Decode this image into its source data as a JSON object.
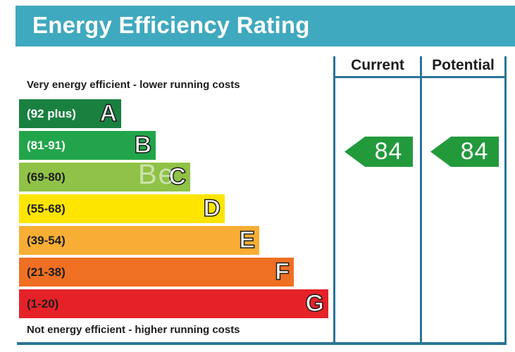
{
  "title": "Energy Efficiency Rating",
  "columns": {
    "current": "Current",
    "potential": "Potential"
  },
  "top_caption": "Very energy efficient - lower running costs",
  "bottom_caption": "Not energy efficient - higher running costs",
  "watermark": "Be",
  "chart_data": {
    "type": "bar",
    "title": "Energy Efficiency Rating",
    "categories": [
      "A",
      "B",
      "C",
      "D",
      "E",
      "F",
      "G"
    ],
    "bands": [
      {
        "letter": "A",
        "range": "(92 plus)",
        "color": "#1a8040",
        "range_color": "#ffffff"
      },
      {
        "letter": "B",
        "range": "(81-91)",
        "color": "#22a54a",
        "range_color": "#ffffff"
      },
      {
        "letter": "C",
        "range": "(69-80)",
        "color": "#8fc246",
        "range_color": "#1d1d1d"
      },
      {
        "letter": "D",
        "range": "(55-68)",
        "color": "#fde500",
        "range_color": "#1d1d1d"
      },
      {
        "letter": "E",
        "range": "(39-54)",
        "color": "#f8ae34",
        "range_color": "#1d1d1d"
      },
      {
        "letter": "F",
        "range": "(21-38)",
        "color": "#ef6f23",
        "range_color": "#1d1d1d"
      },
      {
        "letter": "G",
        "range": "(1-20)",
        "color": "#e52228",
        "range_color": "#1d1d1d"
      }
    ],
    "current": {
      "value": 84,
      "band": "B"
    },
    "potential": {
      "value": 84,
      "band": "B"
    },
    "arrow_color": "#229a3c"
  }
}
